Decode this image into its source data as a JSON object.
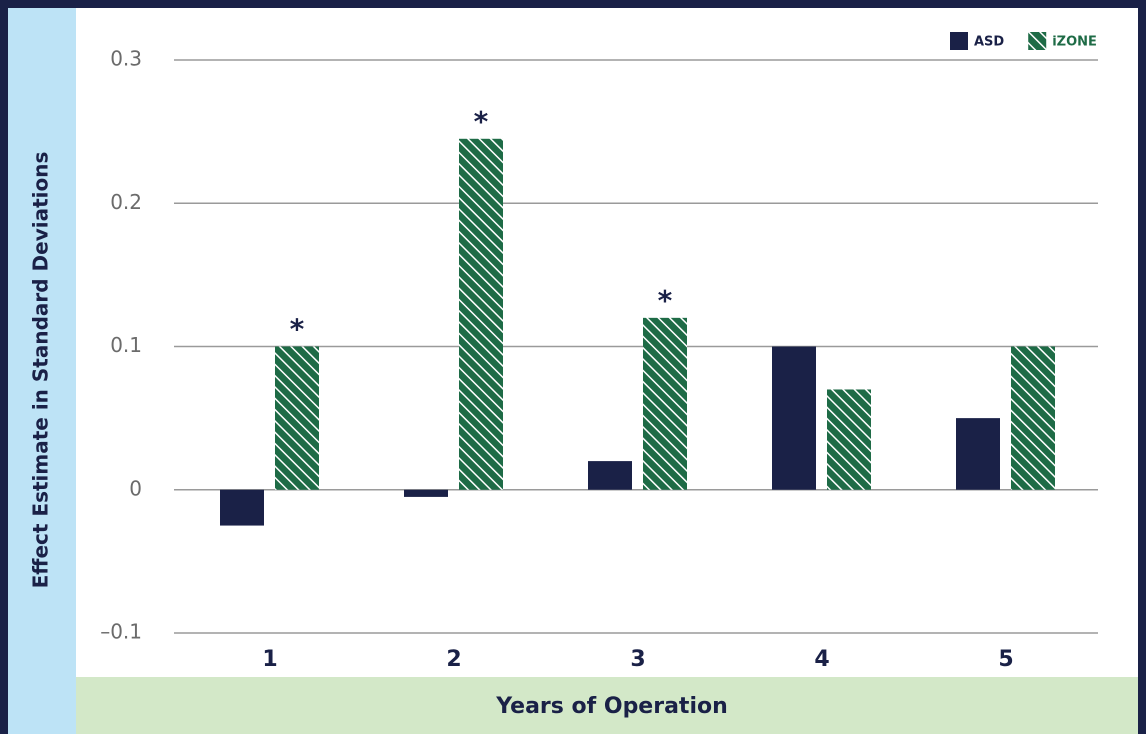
{
  "chart_data": {
    "type": "bar",
    "y_label": "Effect Estimate in Standard Deviations",
    "x_label": "Years of Operation",
    "categories": [
      "1",
      "2",
      "3",
      "4",
      "5"
    ],
    "series": [
      {
        "name": "ASD",
        "color": "#1a2147",
        "values": [
          -0.025,
          -0.005,
          0.02,
          0.1,
          0.05
        ]
      },
      {
        "name": "iZONE",
        "color": "#1e6b46",
        "hatch": true,
        "values": [
          0.1,
          0.245,
          0.12,
          0.07,
          0.1
        ],
        "markers": [
          "*",
          "*",
          "*",
          null,
          null
        ]
      }
    ],
    "ylim": [
      -0.1,
      0.3
    ],
    "yticks": [
      {
        "value": -0.1,
        "label": "–0.1"
      },
      0,
      0.1,
      0.2,
      0.3
    ],
    "grid": true,
    "legend": "top-right"
  }
}
